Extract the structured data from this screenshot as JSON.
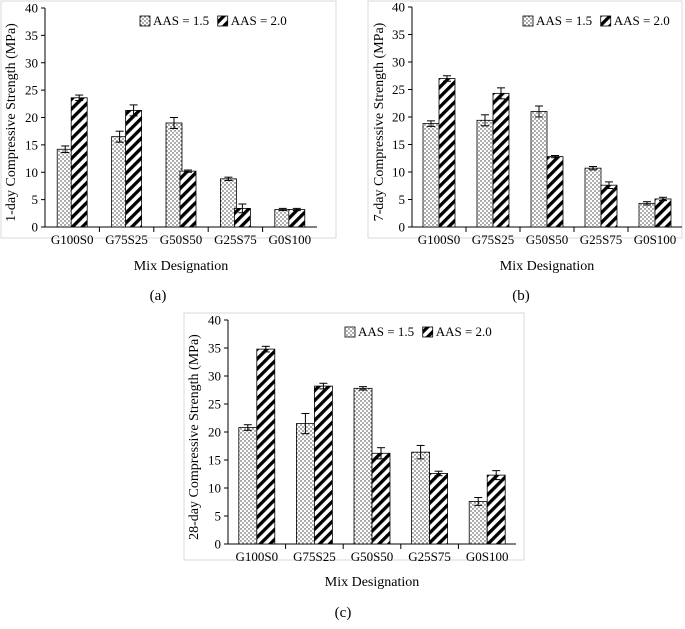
{
  "chart_data": [
    {
      "type": "bar",
      "panel_label": "(a)",
      "ylabel": "1-day Compressive Strength (MPa)",
      "xlabel": "Mix Designation",
      "ylim": [
        0,
        40
      ],
      "yticks": [
        "0",
        "5",
        "10",
        "15",
        "20",
        "25",
        "30",
        "35",
        "40"
      ],
      "grid": false,
      "legend": "top-right",
      "categories": [
        "G100S0",
        "G75S25",
        "G50S50",
        "G25S75",
        "G0S100"
      ],
      "series": [
        {
          "name": "AAS = 1.5",
          "pattern": "dots",
          "values": [
            14.2,
            16.5,
            19.0,
            8.8,
            3.2
          ],
          "errors": [
            0.6,
            1.0,
            1.0,
            0.3,
            0.2
          ]
        },
        {
          "name": "AAS = 2.0",
          "pattern": "stripes",
          "values": [
            23.6,
            21.3,
            10.2,
            3.4,
            3.2
          ],
          "errors": [
            0.5,
            1.0,
            0.2,
            0.8,
            0.2
          ]
        }
      ]
    },
    {
      "type": "bar",
      "panel_label": "(b)",
      "ylabel": "7-day Compressive Strength (MPa)",
      "xlabel": "Mix Designation",
      "ylim": [
        0,
        40
      ],
      "yticks": [
        "0",
        "5",
        "10",
        "15",
        "20",
        "25",
        "30",
        "35",
        "40"
      ],
      "grid": false,
      "legend": "top-right",
      "categories": [
        "G100S0",
        "G75S25",
        "G50S50",
        "G25S75",
        "G0S100"
      ],
      "series": [
        {
          "name": "AAS = 1.5",
          "pattern": "dots",
          "values": [
            18.8,
            19.4,
            21.0,
            10.7,
            4.3
          ],
          "errors": [
            0.5,
            1.0,
            1.0,
            0.3,
            0.3
          ]
        },
        {
          "name": "AAS = 2.0",
          "pattern": "stripes",
          "values": [
            27.0,
            24.3,
            12.8,
            7.6,
            5.1
          ],
          "errors": [
            0.5,
            1.0,
            0.2,
            0.6,
            0.3
          ]
        }
      ]
    },
    {
      "type": "bar",
      "panel_label": "(c)",
      "ylabel": "28-day Compressive Strength (MPa)",
      "xlabel": "Mix Designation",
      "ylim": [
        0,
        40
      ],
      "yticks": [
        "0",
        "5",
        "10",
        "15",
        "20",
        "25",
        "30",
        "35",
        "40"
      ],
      "grid": false,
      "legend": "top-right",
      "categories": [
        "G100S0",
        "G75S25",
        "G50S50",
        "G25S75",
        "G0S100"
      ],
      "series": [
        {
          "name": "AAS = 1.5",
          "pattern": "dots",
          "values": [
            20.8,
            21.5,
            27.8,
            16.4,
            7.6
          ],
          "errors": [
            0.5,
            1.8,
            0.3,
            1.2,
            0.7
          ]
        },
        {
          "name": "AAS = 2.0",
          "pattern": "stripes",
          "values": [
            34.8,
            28.2,
            16.2,
            12.6,
            12.3
          ],
          "errors": [
            0.5,
            0.5,
            1.0,
            0.4,
            0.8
          ]
        }
      ]
    }
  ]
}
